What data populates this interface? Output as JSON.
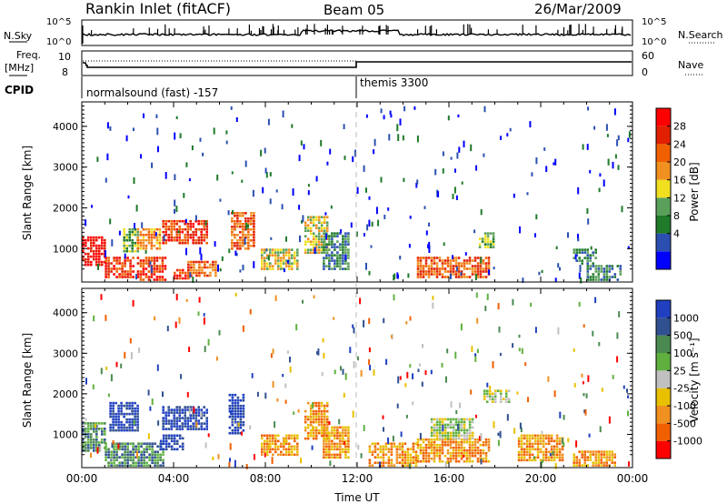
{
  "header": {
    "station": "Rankin Inlet (fitACF)",
    "beam": "Beam 05",
    "date": "26/Mar/2009"
  },
  "noise_panel": {
    "left_label": "N.Sky",
    "right_label": "N.Search",
    "left_ticks": [
      "10^5",
      "10^0"
    ],
    "right_ticks": [
      "10^5",
      "10^0"
    ]
  },
  "freq_panel": {
    "left_label_1": "Freq.",
    "left_label_2": "[MHz]",
    "left_ticks": [
      "10",
      "8"
    ],
    "right_label": "Nave",
    "right_ticks": [
      "60",
      "0"
    ]
  },
  "cpid": {
    "label": "CPID",
    "modes": [
      {
        "name": "normalsound (fast) -157",
        "start_hour": 0
      },
      {
        "name": "themis 3300",
        "start_hour": 12
      }
    ]
  },
  "colors": {
    "power": [
      "#0000ff",
      "#2a4fb0",
      "#1f7a2a",
      "#5aa05a",
      "#f0e020",
      "#f09020",
      "#f06000",
      "#e02000",
      "#ff0000"
    ],
    "velocity": [
      "#2040c0",
      "#305090",
      "#4a8a50",
      "#60b040",
      "#c0c0c0",
      "#e8c000",
      "#f09020",
      "#f06000",
      "#ff0000"
    ]
  },
  "chart_data": [
    {
      "type": "heatmap",
      "name": "power",
      "ylabel": "Slant Range [km]",
      "ylim": [
        180,
        4600
      ],
      "xlim": [
        0,
        24
      ],
      "yticks": [
        "1000",
        "2000",
        "3000",
        "4000"
      ],
      "colorbar_label": "Power [dB]",
      "colorbar_ticks": [
        "28",
        "24",
        "20",
        "16",
        "12",
        "8",
        "4"
      ],
      "regions": [
        {
          "x": [
            0.0,
            1.0
          ],
          "y": [
            600,
            1300
          ],
          "level": 8
        },
        {
          "x": [
            1.0,
            2.2
          ],
          "y": [
            300,
            800
          ],
          "level": 7
        },
        {
          "x": [
            1.8,
            2.5
          ],
          "y": [
            900,
            1500
          ],
          "level": 3
        },
        {
          "x": [
            2.4,
            3.6
          ],
          "y": [
            250,
            800
          ],
          "level": 7
        },
        {
          "x": [
            2.4,
            3.4
          ],
          "y": [
            1000,
            1500
          ],
          "level": 5
        },
        {
          "x": [
            3.5,
            5.5
          ],
          "y": [
            1100,
            1700
          ],
          "level": 7
        },
        {
          "x": [
            4.0,
            4.6
          ],
          "y": [
            250,
            500
          ],
          "level": 7
        },
        {
          "x": [
            4.6,
            5.8
          ],
          "y": [
            300,
            700
          ],
          "level": 6
        },
        {
          "x": [
            6.5,
            7.5
          ],
          "y": [
            1000,
            1900
          ],
          "level": 6
        },
        {
          "x": [
            7.8,
            9.4
          ],
          "y": [
            500,
            1000
          ],
          "level": 4
        },
        {
          "x": [
            9.7,
            10.7
          ],
          "y": [
            900,
            1800
          ],
          "level": 4
        },
        {
          "x": [
            10.5,
            11.6
          ],
          "y": [
            500,
            1400
          ],
          "level": 2
        },
        {
          "x": [
            14.6,
            17.8
          ],
          "y": [
            300,
            800
          ],
          "level": 6
        },
        {
          "x": [
            17.3,
            17.9
          ],
          "y": [
            1000,
            1400
          ],
          "level": 3
        },
        {
          "x": [
            21.4,
            22.4
          ],
          "y": [
            600,
            1000
          ],
          "level": 2
        },
        {
          "x": [
            22.0,
            23.5
          ],
          "y": [
            250,
            600
          ],
          "level": 2
        }
      ]
    },
    {
      "type": "heatmap",
      "name": "velocity",
      "xlabel": "Time UT",
      "ylabel": "Slant Range [km]",
      "ylim": [
        180,
        4600
      ],
      "xlim": [
        0,
        24
      ],
      "xticks": [
        "00:00",
        "04:00",
        "08:00",
        "12:00",
        "16:00",
        "20:00",
        "00:00"
      ],
      "yticks": [
        "1000",
        "2000",
        "3000",
        "4000"
      ],
      "colorbar_label": "Velocity [m s⁻¹]",
      "colorbar_ticks": [
        "1000",
        "500",
        "100",
        "25",
        "-25",
        "-100",
        "-500",
        "-1000"
      ],
      "regions": [
        {
          "x": [
            0.0,
            1.0
          ],
          "y": [
            600,
            1300
          ],
          "level": 2
        },
        {
          "x": [
            1.2,
            2.4
          ],
          "y": [
            1100,
            1800
          ],
          "level": 0
        },
        {
          "x": [
            1.0,
            3.5
          ],
          "y": [
            250,
            800
          ],
          "level": 2
        },
        {
          "x": [
            3.5,
            5.5
          ],
          "y": [
            1100,
            1700
          ],
          "level": 0
        },
        {
          "x": [
            3.4,
            4.4
          ],
          "y": [
            600,
            1000
          ],
          "level": 0
        },
        {
          "x": [
            6.4,
            7.1
          ],
          "y": [
            1000,
            2000
          ],
          "level": 0
        },
        {
          "x": [
            7.8,
            9.4
          ],
          "y": [
            500,
            1000
          ],
          "level": 6
        },
        {
          "x": [
            9.7,
            10.7
          ],
          "y": [
            900,
            1800
          ],
          "level": 6
        },
        {
          "x": [
            10.5,
            11.6
          ],
          "y": [
            400,
            1200
          ],
          "level": 6
        },
        {
          "x": [
            12.5,
            14.6
          ],
          "y": [
            250,
            800
          ],
          "level": 6
        },
        {
          "x": [
            14.6,
            17.8
          ],
          "y": [
            300,
            900
          ],
          "level": 6
        },
        {
          "x": [
            15.2,
            17.0
          ],
          "y": [
            900,
            1400
          ],
          "level": 4
        },
        {
          "x": [
            17.5,
            18.6
          ],
          "y": [
            1800,
            2100
          ],
          "level": 4
        },
        {
          "x": [
            19.0,
            21.0
          ],
          "y": [
            350,
            1000
          ],
          "level": 6
        },
        {
          "x": [
            21.4,
            23.2
          ],
          "y": [
            250,
            600
          ],
          "level": 6
        }
      ]
    }
  ]
}
